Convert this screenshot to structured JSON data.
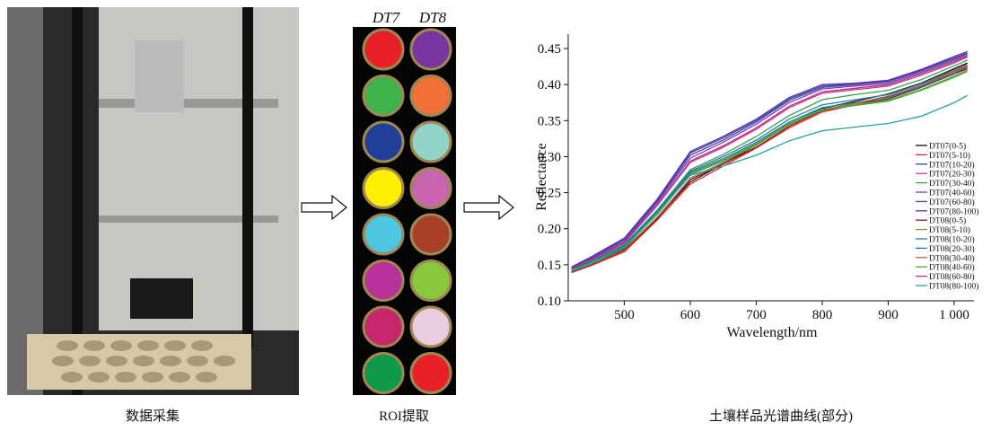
{
  "captions": [
    "数据采集",
    "ROI提取",
    "土壤样品光谱曲线(部分)"
  ],
  "roi_labels": [
    "DT7",
    "DT8"
  ],
  "chart_data": {
    "type": "line",
    "x_label": "Wavelength/nm",
    "y_label": "Reflectance",
    "x": [
      420,
      450,
      500,
      550,
      600,
      650,
      700,
      750,
      800,
      850,
      900,
      950,
      1000,
      1020
    ],
    "xlim": [
      415,
      1030
    ],
    "ylim": [
      0.1,
      0.47
    ],
    "xticks": [
      500,
      600,
      700,
      800,
      900,
      {
        "value": 1000,
        "label": "1 000"
      }
    ],
    "yticks": [
      {
        "value": 0.1,
        "label": "0.10"
      },
      0.15,
      {
        "value": 0.2,
        "label": "0.20"
      },
      0.25,
      {
        "value": 0.3,
        "label": "0.30"
      },
      0.35,
      {
        "value": 0.4,
        "label": "0.40"
      },
      0.45
    ],
    "legend": "right",
    "series": [
      {
        "name": "DT07(0-5)",
        "color": "#111111",
        "values": [
          0.141,
          0.152,
          0.172,
          0.215,
          0.265,
          0.29,
          0.316,
          0.345,
          0.367,
          0.377,
          0.387,
          0.402,
          0.422,
          0.43
        ]
      },
      {
        "name": "DT07(5-10)",
        "color": "#e0282e",
        "values": [
          0.139,
          0.149,
          0.168,
          0.212,
          0.262,
          0.287,
          0.312,
          0.34,
          0.362,
          0.372,
          0.383,
          0.398,
          0.418,
          0.425
        ]
      },
      {
        "name": "DT07(10-20)",
        "color": "#2c4a9c",
        "values": [
          0.146,
          0.16,
          0.186,
          0.24,
          0.305,
          0.326,
          0.35,
          0.38,
          0.398,
          0.401,
          0.405,
          0.42,
          0.437,
          0.444
        ]
      },
      {
        "name": "DT07(20-30)",
        "color": "#c03aa0",
        "values": [
          0.144,
          0.156,
          0.18,
          0.232,
          0.292,
          0.313,
          0.338,
          0.368,
          0.388,
          0.393,
          0.398,
          0.413,
          0.43,
          0.438
        ]
      },
      {
        "name": "DT07(30-40)",
        "color": "#3aa04a",
        "values": [
          0.143,
          0.155,
          0.178,
          0.226,
          0.282,
          0.303,
          0.328,
          0.357,
          0.379,
          0.386,
          0.392,
          0.407,
          0.426,
          0.434
        ]
      },
      {
        "name": "DT07(40-60)",
        "color": "#7a3ab0",
        "values": [
          0.145,
          0.158,
          0.183,
          0.236,
          0.298,
          0.32,
          0.345,
          0.375,
          0.394,
          0.398,
          0.402,
          0.417,
          0.434,
          0.441
        ]
      },
      {
        "name": "DT07(60-80)",
        "color": "#4a44b8",
        "values": [
          0.146,
          0.159,
          0.185,
          0.238,
          0.302,
          0.323,
          0.348,
          0.378,
          0.396,
          0.4,
          0.404,
          0.419,
          0.436,
          0.443
        ]
      },
      {
        "name": "DT07(80-100)",
        "color": "#6a30a0",
        "values": [
          0.147,
          0.161,
          0.187,
          0.241,
          0.307,
          0.328,
          0.352,
          0.382,
          0.4,
          0.402,
          0.406,
          0.421,
          0.439,
          0.446
        ]
      },
      {
        "name": "DT08(0-5)",
        "color": "#8a1a1a",
        "values": [
          0.14,
          0.15,
          0.17,
          0.214,
          0.268,
          0.29,
          0.313,
          0.342,
          0.364,
          0.372,
          0.38,
          0.396,
          0.415,
          0.422
        ]
      },
      {
        "name": "DT08(5-10)",
        "color": "#6a9a3a",
        "values": [
          0.142,
          0.153,
          0.175,
          0.222,
          0.276,
          0.295,
          0.318,
          0.346,
          0.366,
          0.372,
          0.378,
          0.393,
          0.412,
          0.42
        ]
      },
      {
        "name": "DT08(10-20)",
        "color": "#2a7ab0",
        "values": [
          0.143,
          0.155,
          0.177,
          0.225,
          0.28,
          0.3,
          0.323,
          0.352,
          0.372,
          0.379,
          0.386,
          0.401,
          0.42,
          0.428
        ]
      },
      {
        "name": "DT08(20-30)",
        "color": "#1a7a9a",
        "values": [
          0.143,
          0.154,
          0.176,
          0.224,
          0.278,
          0.297,
          0.32,
          0.348,
          0.368,
          0.375,
          0.382,
          0.397,
          0.416,
          0.424
        ]
      },
      {
        "name": "DT08(30-40)",
        "color": "#b06a3a",
        "values": [
          0.141,
          0.151,
          0.171,
          0.216,
          0.27,
          0.292,
          0.316,
          0.344,
          0.365,
          0.374,
          0.384,
          0.399,
          0.419,
          0.427
        ]
      },
      {
        "name": "DT08(40-60)",
        "color": "#3ab03a",
        "values": [
          0.142,
          0.153,
          0.174,
          0.22,
          0.275,
          0.294,
          0.317,
          0.345,
          0.365,
          0.371,
          0.377,
          0.392,
          0.41,
          0.418
        ]
      },
      {
        "name": "DT08(60-80)",
        "color": "#c0307a",
        "values": [
          0.144,
          0.157,
          0.181,
          0.233,
          0.294,
          0.315,
          0.34,
          0.37,
          0.39,
          0.395,
          0.4,
          0.415,
          0.432,
          0.44
        ]
      },
      {
        "name": "DT08(80-100)",
        "color": "#20a0a0",
        "values": [
          0.141,
          0.152,
          0.174,
          0.222,
          0.274,
          0.287,
          0.302,
          0.322,
          0.336,
          0.341,
          0.346,
          0.356,
          0.375,
          0.385
        ]
      }
    ]
  }
}
